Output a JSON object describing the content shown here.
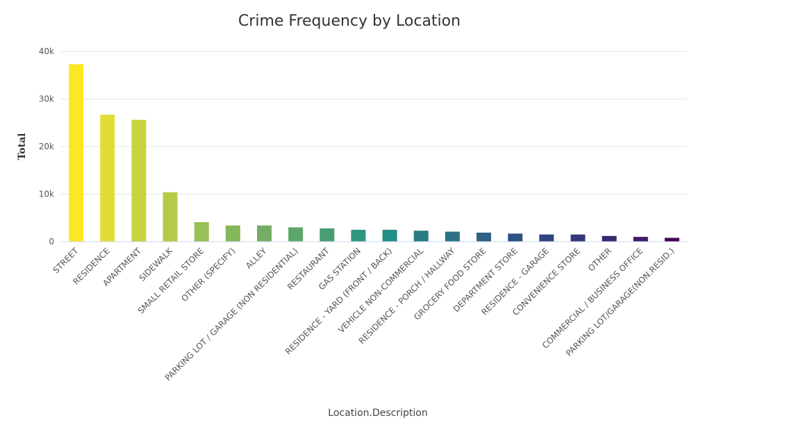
{
  "chart_data": {
    "type": "bar",
    "title": "Crime Frequency by Location",
    "xlabel": "Location.Description",
    "ylabel": "Total",
    "ylim": [
      0,
      40000
    ],
    "yticks": [
      {
        "value": 0,
        "label": "0"
      },
      {
        "value": 10000,
        "label": "10k"
      },
      {
        "value": 20000,
        "label": "20k"
      },
      {
        "value": 30000,
        "label": "30k"
      },
      {
        "value": 40000,
        "label": "40k"
      }
    ],
    "grid": true,
    "legend": "none",
    "categories": [
      "STREET",
      "RESIDENCE",
      "APARTMENT",
      "SIDEWALK",
      "SMALL RETAIL STORE",
      "OTHER (SPECIFY)",
      "ALLEY",
      "PARKING LOT / GARAGE (NON RESIDENTIAL)",
      "RESTAURANT",
      "GAS STATION",
      "RESIDENCE - YARD (FRONT / BACK)",
      "VEHICLE NON-COMMERCIAL",
      "RESIDENCE - PORCH / HALLWAY",
      "GROCERY FOOD STORE",
      "DEPARTMENT STORE",
      "RESIDENCE - GARAGE",
      "CONVENIENCE STORE",
      "OTHER",
      "COMMERCIAL / BUSINESS OFFICE",
      "PARKING LOT/GARAGE(NON.RESID.)"
    ],
    "values": [
      37300,
      26700,
      25600,
      10400,
      4100,
      3400,
      3400,
      3000,
      2800,
      2500,
      2500,
      2300,
      2100,
      1900,
      1700,
      1500,
      1500,
      1200,
      1000,
      800
    ],
    "colors": [
      "#fde725",
      "#e1dd37",
      "#c8d33e",
      "#b5cb48",
      "#98c056",
      "#85b75b",
      "#74ad63",
      "#5ea76a",
      "#4a9d73",
      "#2e9680",
      "#218f85",
      "#297c86",
      "#2c7184",
      "#2f6185",
      "#2e5284",
      "#304481",
      "#33397b",
      "#3a2a72",
      "#411d69",
      "#440154"
    ]
  }
}
